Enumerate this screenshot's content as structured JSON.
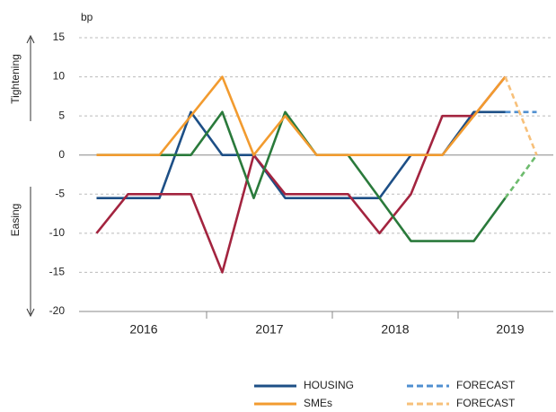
{
  "chart_data": {
    "type": "line",
    "y_label": "bp",
    "upper_label": "Tightening",
    "lower_label": "Easing",
    "categories": [
      null,
      null,
      null,
      null,
      null,
      null,
      null,
      null,
      null,
      null,
      null,
      null,
      null,
      null,
      null
    ],
    "x_groups": [
      "2016",
      "2017",
      "2018",
      "2019"
    ],
    "ylim": [
      -20,
      15
    ],
    "yticks": [
      -20,
      -15,
      -10,
      -5,
      0,
      5,
      10,
      15
    ],
    "grid": true,
    "series": [
      {
        "name": "HOUSING",
        "color": "#1d4f86",
        "values": [
          -5.5,
          -5.5,
          -5.5,
          5.5,
          0,
          0,
          -5.5,
          -5.5,
          -5.5,
          -5.5,
          0,
          0,
          5.5,
          5.5,
          null
        ]
      },
      {
        "color": "#a3243f",
        "values": [
          -10,
          -5,
          -5,
          -5,
          -15,
          0,
          -5,
          -5,
          -5,
          -10,
          -5,
          5,
          5,
          10,
          null
        ]
      },
      {
        "color": "#2a7a3b",
        "values": [
          0,
          0,
          0,
          0,
          5.5,
          -5.5,
          5.5,
          0,
          0,
          -5.5,
          -11,
          -11,
          -11,
          -5.5,
          null
        ]
      },
      {
        "name": "SMEs",
        "color": "#f29b2f",
        "values": [
          0,
          0,
          0,
          5,
          10,
          0,
          5,
          0,
          0,
          0,
          0,
          0,
          5,
          10,
          null
        ]
      },
      {
        "name": "FORECAST",
        "color": "#4f8fd0",
        "dashed": true,
        "values": [
          null,
          null,
          null,
          null,
          null,
          null,
          null,
          null,
          null,
          null,
          null,
          null,
          null,
          5.5,
          5.5
        ]
      },
      {
        "color": "#6dbb6d",
        "dashed": true,
        "values": [
          null,
          null,
          null,
          null,
          null,
          null,
          null,
          null,
          null,
          null,
          null,
          null,
          null,
          -5.5,
          0
        ]
      },
      {
        "name": "FORECAST",
        "color": "#f7c07a",
        "dashed": true,
        "values": [
          null,
          null,
          null,
          null,
          null,
          null,
          null,
          null,
          null,
          null,
          null,
          null,
          null,
          10,
          0
        ]
      }
    ]
  }
}
